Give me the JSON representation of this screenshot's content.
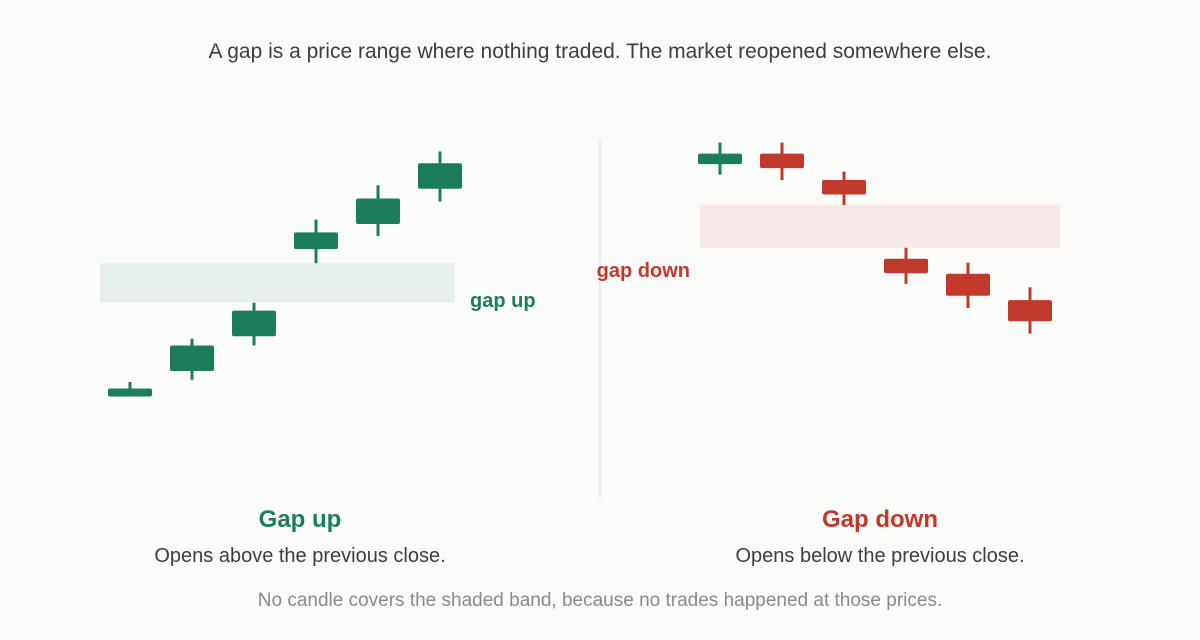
{
  "headline": "A gap is a price range where nothing traded. The market reopened somewhere else.",
  "colors": {
    "up": "#1b7d5a",
    "down": "#c0392b",
    "up_band": "#e6efec",
    "down_band": "#f8e8e8",
    "divider": "#ececec"
  },
  "gap_up": {
    "band_label": "gap up",
    "title": "Gap up",
    "subtitle": "Opens above the previous close.",
    "candles": [
      {
        "direction": "up",
        "open": 0.2,
        "close": 0.26,
        "low": 0.11,
        "high": 0.41
      },
      {
        "direction": "up",
        "open": 0.66,
        "close": 1.24,
        "low": 0.46,
        "high": 1.39
      },
      {
        "direction": "up",
        "open": 1.45,
        "close": 2.03,
        "low": 1.24,
        "high": 2.21
      },
      {
        "direction": "up",
        "open": 3.43,
        "close": 3.81,
        "low": 3.11,
        "high": 4.1
      },
      {
        "direction": "up",
        "open": 4.0,
        "close": 4.58,
        "low": 3.73,
        "high": 4.88
      },
      {
        "direction": "up",
        "open": 4.8,
        "close": 5.38,
        "low": 4.51,
        "high": 5.65
      }
    ],
    "gap_band": {
      "low": 2.21,
      "high": 3.11
    }
  },
  "gap_down": {
    "band_label": "gap down",
    "title": "Gap down",
    "subtitle": "Opens below the previous close.",
    "candles": [
      {
        "direction": "up",
        "open": 5.36,
        "close": 5.6,
        "low": 5.12,
        "high": 5.85
      },
      {
        "direction": "down",
        "open": 5.6,
        "close": 5.27,
        "low": 5.0,
        "high": 5.85
      },
      {
        "direction": "down",
        "open": 5.0,
        "close": 4.67,
        "low": 4.43,
        "high": 5.19
      },
      {
        "direction": "down",
        "open": 3.21,
        "close": 2.88,
        "low": 2.64,
        "high": 3.46
      },
      {
        "direction": "down",
        "open": 2.87,
        "close": 2.37,
        "low": 2.09,
        "high": 3.12
      },
      {
        "direction": "down",
        "open": 2.27,
        "close": 1.79,
        "low": 1.51,
        "high": 2.56
      }
    ],
    "gap_band": {
      "low": 3.46,
      "high": 4.43
    }
  },
  "footnote": "No candle covers the shaded band, because no trades happened at those prices."
}
